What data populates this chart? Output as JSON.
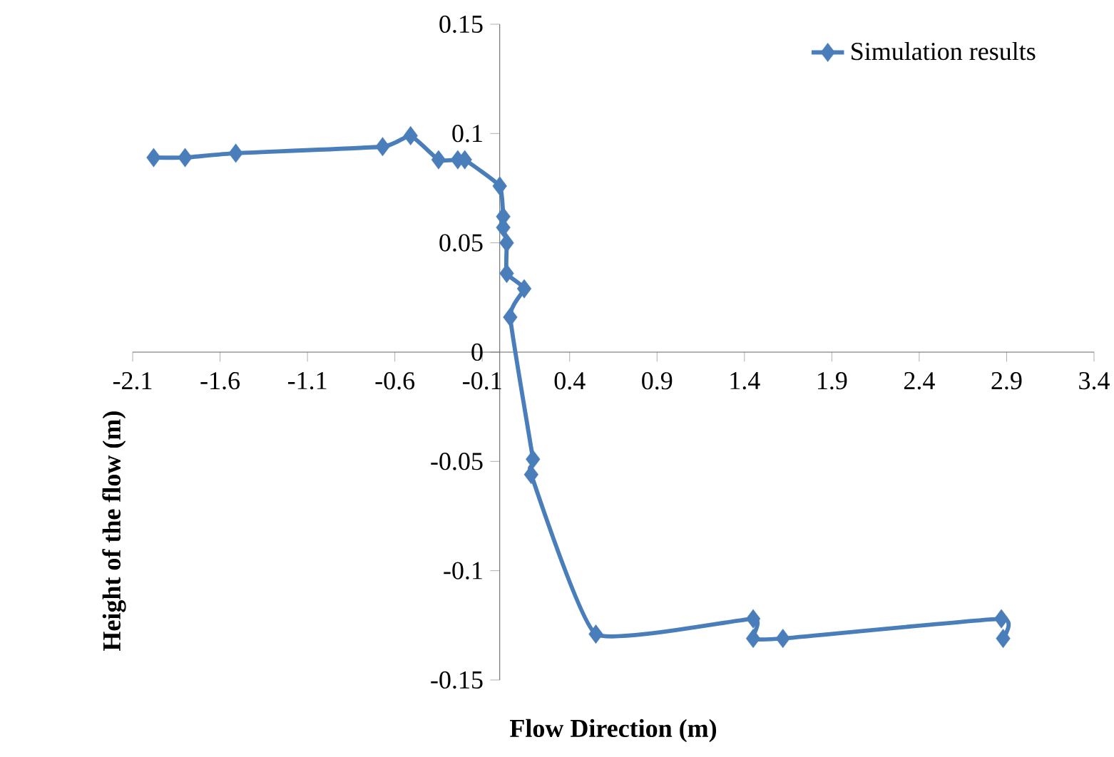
{
  "chart_data": {
    "type": "line",
    "xlabel": "Flow Direction (m)",
    "ylabel": "Height of the flow (m)",
    "series": [
      {
        "name": "Simulation results",
        "color": "#4a7ebb",
        "x": [
          -1.98,
          -1.8,
          -1.51,
          -0.67,
          -0.51,
          -0.35,
          -0.24,
          -0.2,
          0.0,
          0.02,
          0.02,
          0.04,
          0.04,
          0.14,
          0.06,
          0.19,
          0.18,
          0.55,
          1.45,
          1.45,
          1.62,
          2.87,
          2.88
        ],
        "values": [
          0.089,
          0.089,
          0.091,
          0.094,
          0.099,
          0.088,
          0.088,
          0.088,
          0.076,
          0.062,
          0.057,
          0.05,
          0.036,
          0.029,
          0.016,
          -0.049,
          -0.056,
          -0.129,
          -0.122,
          -0.131,
          -0.131,
          -0.122,
          -0.131
        ]
      }
    ],
    "xlim": [
      -2.1,
      3.4
    ],
    "xticks": [
      -2.1,
      -1.6,
      -1.1,
      -0.6,
      -0.1,
      0.4,
      0.9,
      1.4,
      1.9,
      2.4,
      2.9,
      3.4
    ],
    "ylim": [
      -0.15,
      0.15
    ],
    "yticks": [
      -0.15,
      -0.1,
      -0.05,
      0,
      0.05,
      0.1,
      0.15
    ],
    "grid": false,
    "legend": "top right",
    "marker": "diamond",
    "line_style": "solid"
  }
}
